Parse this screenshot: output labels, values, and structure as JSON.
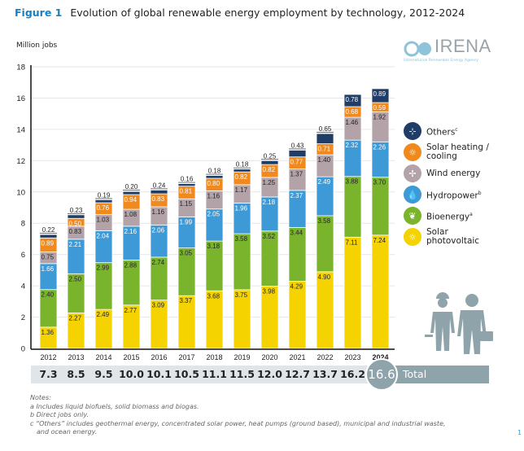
{
  "title": {
    "figure_label": "Figure 1",
    "text": "Evolution of global renewable energy employment by technology, 2012-2024"
  },
  "logo": {
    "name": "IRENA",
    "subtitle": "International Renewable Energy Agency"
  },
  "chart_data": {
    "type": "bar",
    "stacked": true,
    "title": "Evolution of global renewable energy employment by technology, 2012-2024",
    "xlabel": "",
    "ylabel": "Million jobs",
    "ylim": [
      0,
      18
    ],
    "yticks": [
      0,
      2,
      4,
      6,
      8,
      10,
      12,
      14,
      16,
      18
    ],
    "grid": true,
    "legend_position": "right",
    "categories": [
      "2012",
      "2013",
      "2014",
      "2015",
      "2016",
      "2017",
      "2018",
      "2019",
      "2020",
      "2021",
      "2022",
      "2023",
      "2024"
    ],
    "series": [
      {
        "name": "Solar photovoltaic",
        "key": "solar_pv",
        "color": "#f5d300",
        "label_color": "#222222",
        "values": [
          1.36,
          2.27,
          2.49,
          2.77,
          3.09,
          3.37,
          3.68,
          3.75,
          3.98,
          4.29,
          4.9,
          7.11,
          7.24
        ]
      },
      {
        "name": "Bioenergy",
        "key": "bioenergy",
        "color": "#7ab42d",
        "label_color": "#222222",
        "values": [
          2.4,
          2.5,
          2.99,
          2.88,
          2.74,
          3.05,
          3.18,
          3.58,
          3.52,
          3.44,
          3.58,
          3.88,
          3.7
        ]
      },
      {
        "name": "Hydropower",
        "key": "hydropower",
        "color": "#3d9ad6",
        "label_color": "#ffffff",
        "values": [
          1.66,
          2.21,
          2.04,
          2.16,
          2.06,
          1.99,
          2.05,
          1.96,
          2.18,
          2.37,
          2.49,
          2.32,
          2.26
        ]
      },
      {
        "name": "Wind energy",
        "key": "wind",
        "color": "#b3a3a8",
        "label_color": "#222222",
        "values": [
          0.75,
          0.83,
          1.03,
          1.08,
          1.16,
          1.15,
          1.16,
          1.17,
          1.25,
          1.37,
          1.4,
          1.46,
          1.92
        ]
      },
      {
        "name": "Solar heating / cooling",
        "key": "solar_heating",
        "color": "#f08a1e",
        "label_color": "#ffffff",
        "values": [
          0.89,
          0.5,
          0.76,
          0.94,
          0.83,
          0.81,
          0.8,
          0.82,
          0.82,
          0.77,
          0.71,
          0.68,
          0.59
        ]
      },
      {
        "name": "Others",
        "key": "others",
        "color": "#1f3d66",
        "label_color": "#ffffff",
        "values": [
          0.22,
          0.23,
          0.19,
          0.2,
          0.24,
          0.16,
          0.18,
          0.18,
          0.25,
          0.43,
          0.65,
          0.78,
          0.89
        ]
      }
    ],
    "totals": [
      "7.3",
      "8.5",
      "9.5",
      "10.0",
      "10.1",
      "10.5",
      "11.1",
      "11.5",
      "12.0",
      "12.7",
      "13.7",
      "16.2",
      "16.6"
    ],
    "highlight_year": "2024",
    "totals_label": "Total"
  },
  "legend": [
    {
      "label": "Others",
      "sup": "c",
      "color": "#1f3d66",
      "icon": "plug-icon",
      "glyph": "⊹"
    },
    {
      "label": "Solar heating / cooling",
      "sup": "",
      "color": "#f08a1e",
      "icon": "sun-icon",
      "glyph": "☼"
    },
    {
      "label": "Wind energy",
      "sup": "",
      "color": "#b3a3a8",
      "icon": "wind-turbine-icon",
      "glyph": "✢"
    },
    {
      "label": "Hydropower",
      "sup": "b",
      "color": "#3d9ad6",
      "icon": "water-drop-icon",
      "glyph": "💧"
    },
    {
      "label": "Bioenergy",
      "sup": "a",
      "color": "#7ab42d",
      "icon": "leaf-icon",
      "glyph": "❦"
    },
    {
      "label": "Solar photovoltaic",
      "sup": "",
      "color": "#f5d300",
      "icon": "sun-icon",
      "glyph": "☼"
    }
  ],
  "notes": {
    "heading": "Notes:",
    "items": [
      "a Includes liquid biofuels, solid biomass and biogas.",
      "b Direct jobs only.",
      "c “Others” includes geothermal energy, concentrated solar power, heat pumps (ground based), municipal and industrial waste,",
      "and ocean energy."
    ]
  },
  "page_number": "1"
}
